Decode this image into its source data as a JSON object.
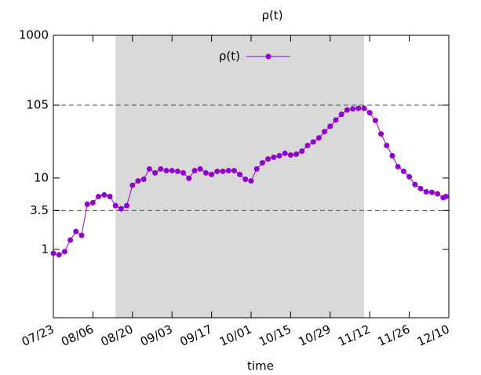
{
  "chart_data": {
    "type": "line",
    "title": "ρ(t)",
    "xlabel": "time",
    "x": [
      "07/23",
      "07/25",
      "07/27",
      "07/29",
      "07/31",
      "08/02",
      "08/04",
      "08/06",
      "08/08",
      "08/10",
      "08/12",
      "08/14",
      "08/16",
      "08/18",
      "08/20",
      "08/22",
      "08/24",
      "08/26",
      "08/28",
      "08/30",
      "09/01",
      "09/03",
      "09/05",
      "09/07",
      "09/09",
      "09/11",
      "09/13",
      "09/15",
      "09/17",
      "09/19",
      "09/21",
      "09/23",
      "09/25",
      "09/27",
      "09/29",
      "10/01",
      "10/03",
      "10/05",
      "10/07",
      "10/09",
      "10/11",
      "10/13",
      "10/15",
      "10/17",
      "10/19",
      "10/21",
      "10/23",
      "10/25",
      "10/27",
      "10/29",
      "10/31",
      "11/02",
      "11/04",
      "11/06",
      "11/08",
      "11/10",
      "11/12",
      "11/14",
      "11/16",
      "11/18",
      "11/20",
      "11/22",
      "11/24",
      "11/26",
      "11/28",
      "11/30",
      "12/02",
      "12/04",
      "12/06",
      "12/08",
      "12/09"
    ],
    "series": [
      {
        "name": "ρ(t)",
        "color": "#9400d3",
        "values": [
          0.88,
          0.84,
          0.93,
          1.35,
          1.78,
          1.57,
          4.3,
          4.5,
          5.5,
          5.8,
          5.5,
          4.1,
          3.7,
          4.1,
          7.9,
          9.1,
          9.6,
          13.4,
          11.8,
          13.4,
          12.7,
          12.7,
          12.4,
          11.8,
          9.9,
          12.7,
          13.4,
          11.8,
          11.2,
          12.4,
          12.4,
          12.7,
          12.7,
          11.2,
          9.6,
          9.1,
          13.4,
          16.3,
          18.5,
          19.5,
          20.5,
          22.2,
          21.0,
          21.6,
          23.8,
          28.5,
          32,
          36.5,
          44.6,
          53,
          65,
          78,
          90,
          93,
          95,
          95,
          82,
          64,
          41.4,
          28.5,
          20.5,
          14.4,
          12.4,
          10.4,
          8.1,
          7.1,
          6.4,
          6.3,
          6.0,
          5.3,
          5.5
        ]
      }
    ],
    "xlim": [
      "07/23",
      "12/10"
    ],
    "xticks": [
      "07/23",
      "08/06",
      "08/20",
      "09/03",
      "09/17",
      "10/01",
      "10/15",
      "10/29",
      "11/12",
      "11/26",
      "12/10"
    ],
    "ylim": [
      0.11,
      1000
    ],
    "yticks": [
      1,
      3.5,
      10,
      105,
      1000
    ],
    "ylog": true,
    "hlines": [
      3.5,
      105
    ],
    "shaded": [
      "08/14",
      "11/10"
    ],
    "shade_color": "#d9d9d9",
    "legend": "top center"
  }
}
